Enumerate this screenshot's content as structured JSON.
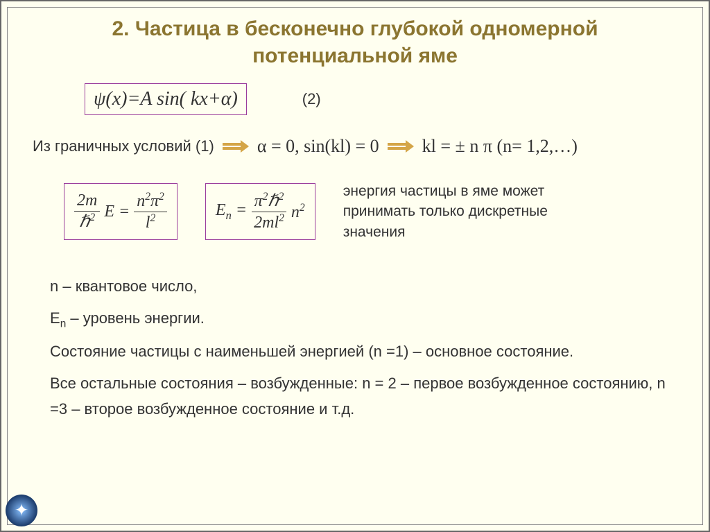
{
  "title": "2. Частица в бесконечно глубокой одномерной потенциальной яме",
  "eq1": {
    "formula": "ψ(x)=A sin( kx+α)",
    "label": "(2)"
  },
  "boundary": {
    "prefix": "Из граничных условий (1)",
    "step1": "α = 0, sin(kl) = 0",
    "step2": "kl = ± n π (n= 1,2,…)"
  },
  "eq2a": {
    "lhs_num": "2m",
    "lhs_den": "ℏ²",
    "mid": "E =",
    "rhs_num": "n²π²",
    "rhs_den": "l²"
  },
  "eq2b": {
    "lhs": "Eₙ =",
    "rhs_num": "π²ℏ²",
    "rhs_den": "2ml²",
    "tail": "n²"
  },
  "side_note": "энергия частицы в яме может принимать только дискретные значения",
  "lines": {
    "l1": "n – квантовое число,",
    "l2": "Eₙ – уровень энергии.",
    "l3": "Состояние частицы с наименьшей энергией (n =1) – основное состояние.",
    "l4": "Все остальные состояния – возбужденные: n = 2 – первое возбужденное состоянию, n =3 – второе возбужденное состояние и т.д."
  },
  "colors": {
    "background": "#fffff0",
    "title": "#8b7530",
    "box_border": "#9b3d9b",
    "arrow": "#d4a547",
    "text": "#333333"
  },
  "fonts": {
    "title_size": 30,
    "body_size": 22,
    "serif_size": 26
  }
}
